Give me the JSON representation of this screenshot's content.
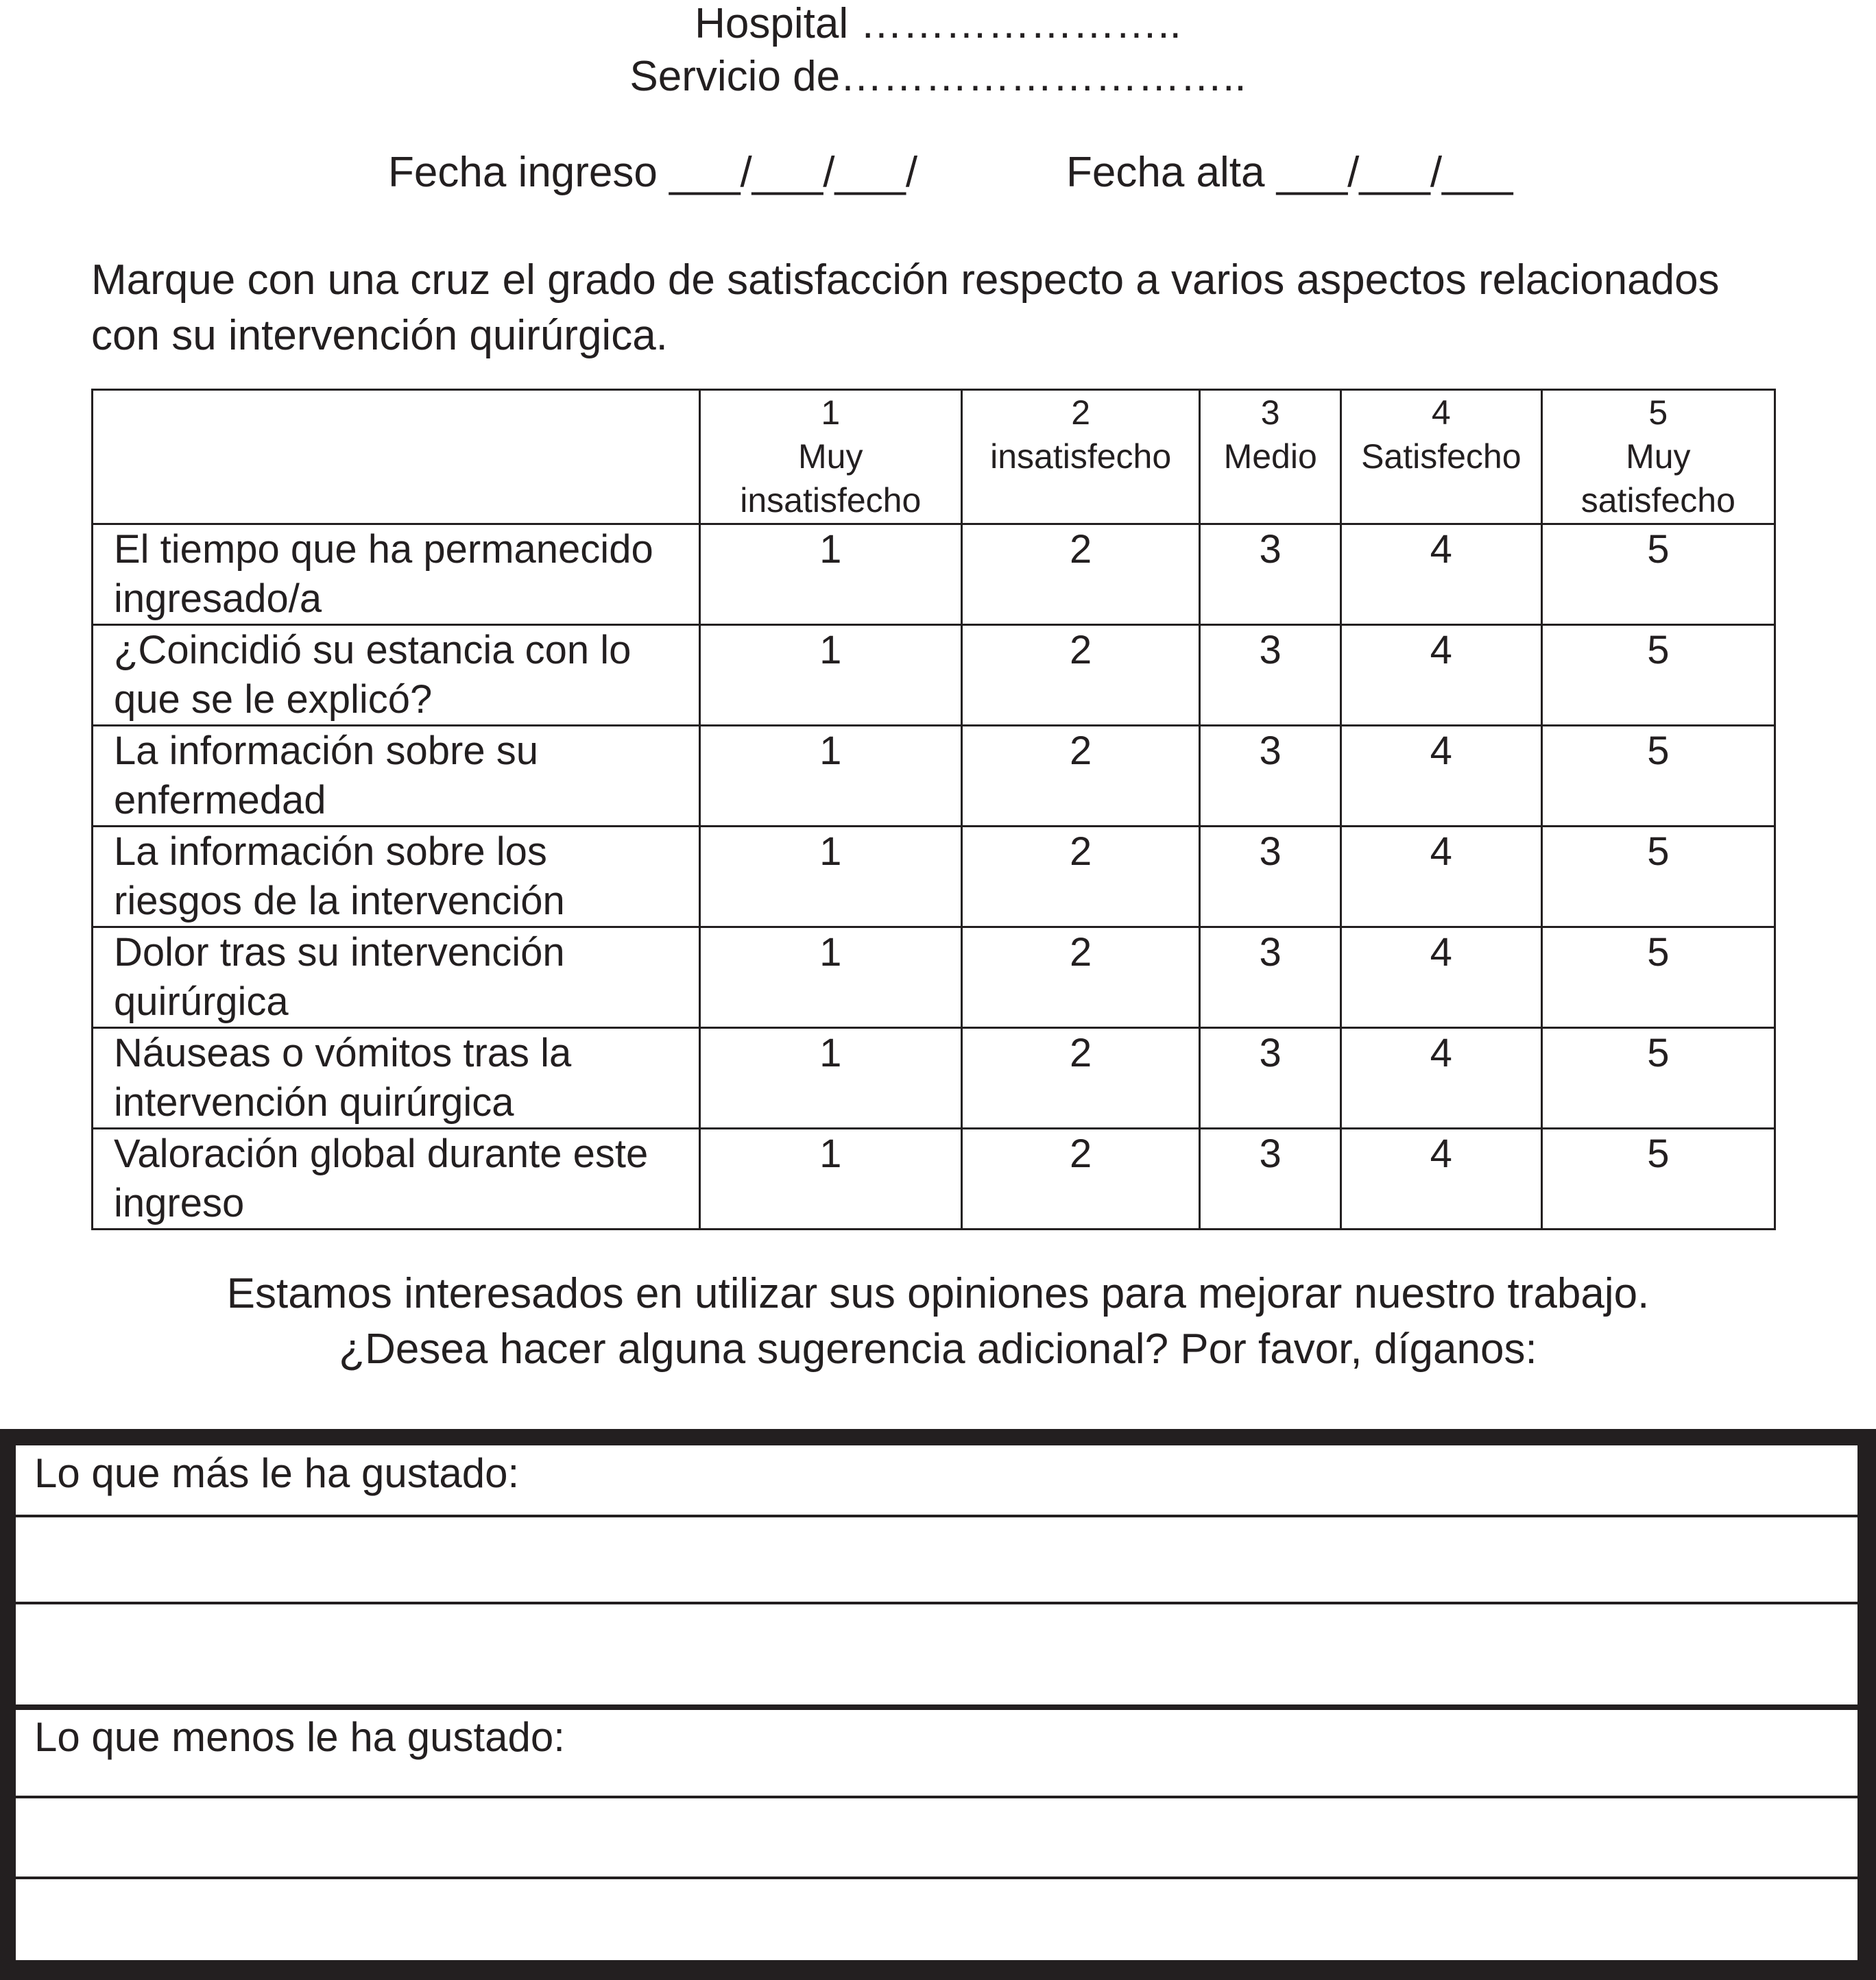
{
  "header": {
    "hospital": "Hospital …………………..",
    "servicio": "Servicio de………………………..",
    "fecha_ingreso": "Fecha ingreso ___/___/___/",
    "fecha_alta": "Fecha alta ___/___/___"
  },
  "instructions": {
    "line1": "Marque con una cruz el grado de satisfacción respecto a varios aspectos relacionados",
    "line2": "con su intervención quirúrgica."
  },
  "table": {
    "columns": [
      {
        "number": "1",
        "label": "Muy\ninsatisfecho"
      },
      {
        "number": "2",
        "label": "insatisfecho"
      },
      {
        "number": "3",
        "label": "Medio"
      },
      {
        "number": "4",
        "label": "Satisfecho"
      },
      {
        "number": "5",
        "label": "Muy\nsatisfecho"
      }
    ],
    "rows": [
      {
        "question": "El tiempo que ha permanecido\ningresado/a",
        "values": [
          "1",
          "2",
          "3",
          "4",
          "5"
        ]
      },
      {
        "question": "¿Coincidió su estancia con lo\nque se le explicó?",
        "values": [
          "1",
          "2",
          "3",
          "4",
          "5"
        ]
      },
      {
        "question": "La información sobre su\nenfermedad",
        "values": [
          "1",
          "2",
          "3",
          "4",
          "5"
        ]
      },
      {
        "question": "La información sobre los\nriesgos de la intervención",
        "values": [
          "1",
          "2",
          "3",
          "4",
          "5"
        ]
      },
      {
        "question": "Dolor tras su intervención\nquirúrgica",
        "values": [
          "1",
          "2",
          "3",
          "4",
          "5"
        ]
      },
      {
        "question": "Náuseas o vómitos tras la\nintervención quirúrgica",
        "values": [
          "1",
          "2",
          "3",
          "4",
          "5"
        ]
      },
      {
        "question": "Valoración global durante este\ningreso",
        "values": [
          "1",
          "2",
          "3",
          "4",
          "5"
        ]
      }
    ]
  },
  "closing": {
    "line1": "Estamos interesados en utilizar sus opiniones para mejorar nuestro trabajo.",
    "line2": "¿Desea hacer alguna sugerencia adicional? Por favor, díganos:"
  },
  "suggestions": {
    "most_liked": "Lo que más le ha gustado:",
    "least_liked": "Lo que menos le ha gustado:"
  }
}
